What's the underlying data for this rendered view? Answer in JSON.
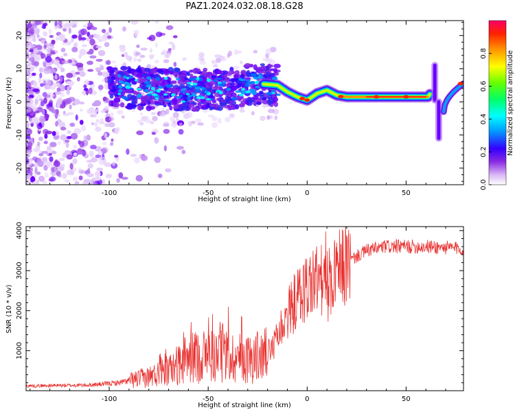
{
  "title": "PAZ1.2024.032.08.18.G28",
  "chart_data": [
    {
      "type": "heatmap",
      "title": "PAZ1.2024.032.08.18.G28",
      "xlabel": "Height of straight line (km)",
      "ylabel": "Frequency (Hz)",
      "xlim": [
        -142,
        79
      ],
      "ylim": [
        -25,
        24.5
      ],
      "xticks": [
        -100,
        -50,
        0,
        50
      ],
      "yticks": [
        -20,
        -10,
        0,
        10,
        20
      ],
      "ridge": [
        {
          "x": -100,
          "y": 4.5
        },
        {
          "x": -80,
          "y": 4
        },
        {
          "x": -60,
          "y": 3.5
        },
        {
          "x": -40,
          "y": 4
        },
        {
          "x": -25,
          "y": 5.5
        },
        {
          "x": -15,
          "y": 5
        },
        {
          "x": -10,
          "y": 3
        },
        {
          "x": -5,
          "y": 1.5
        },
        {
          "x": 0,
          "y": 0.5
        },
        {
          "x": 5,
          "y": 2.5
        },
        {
          "x": 10,
          "y": 3.5
        },
        {
          "x": 15,
          "y": 2
        },
        {
          "x": 20,
          "y": 1.5
        },
        {
          "x": 40,
          "y": 1.5
        },
        {
          "x": 61,
          "y": 1.5
        },
        {
          "x": 63,
          "y": 3
        }
      ],
      "colorbar": {
        "label": "Normalized spectral amplitude",
        "min": 0,
        "max": 1,
        "ticks": [
          "0.0",
          "0.2",
          "0.4",
          "0.6",
          "0.8"
        ]
      },
      "grid": false
    },
    {
      "type": "line",
      "xlabel": "Height of straight line (km)",
      "ylabel": "SNR (10 * v/v)",
      "xlim": [
        -142,
        79
      ],
      "ylim": [
        0,
        4100
      ],
      "xticks": [
        -100,
        -50,
        0,
        50
      ],
      "yticks": [
        1000,
        2000,
        3000,
        4000
      ],
      "color": "#e8312f",
      "envelope": [
        {
          "x": -142,
          "y": 120
        },
        {
          "x": -110,
          "y": 140
        },
        {
          "x": -95,
          "y": 200
        },
        {
          "x": -80,
          "y": 350
        },
        {
          "x": -70,
          "y": 500
        },
        {
          "x": -60,
          "y": 800
        },
        {
          "x": -50,
          "y": 900
        },
        {
          "x": -40,
          "y": 850
        },
        {
          "x": -30,
          "y": 800
        },
        {
          "x": -20,
          "y": 900
        },
        {
          "x": -15,
          "y": 1400
        },
        {
          "x": -10,
          "y": 1900
        },
        {
          "x": -5,
          "y": 2300
        },
        {
          "x": 0,
          "y": 2600
        },
        {
          "x": 5,
          "y": 2800
        },
        {
          "x": 10,
          "y": 2600
        },
        {
          "x": 15,
          "y": 2900
        },
        {
          "x": 20,
          "y": 3200
        },
        {
          "x": 30,
          "y": 3500
        },
        {
          "x": 40,
          "y": 3600
        },
        {
          "x": 60,
          "y": 3600
        },
        {
          "x": 79,
          "y": 3550
        }
      ],
      "grid": false
    }
  ]
}
